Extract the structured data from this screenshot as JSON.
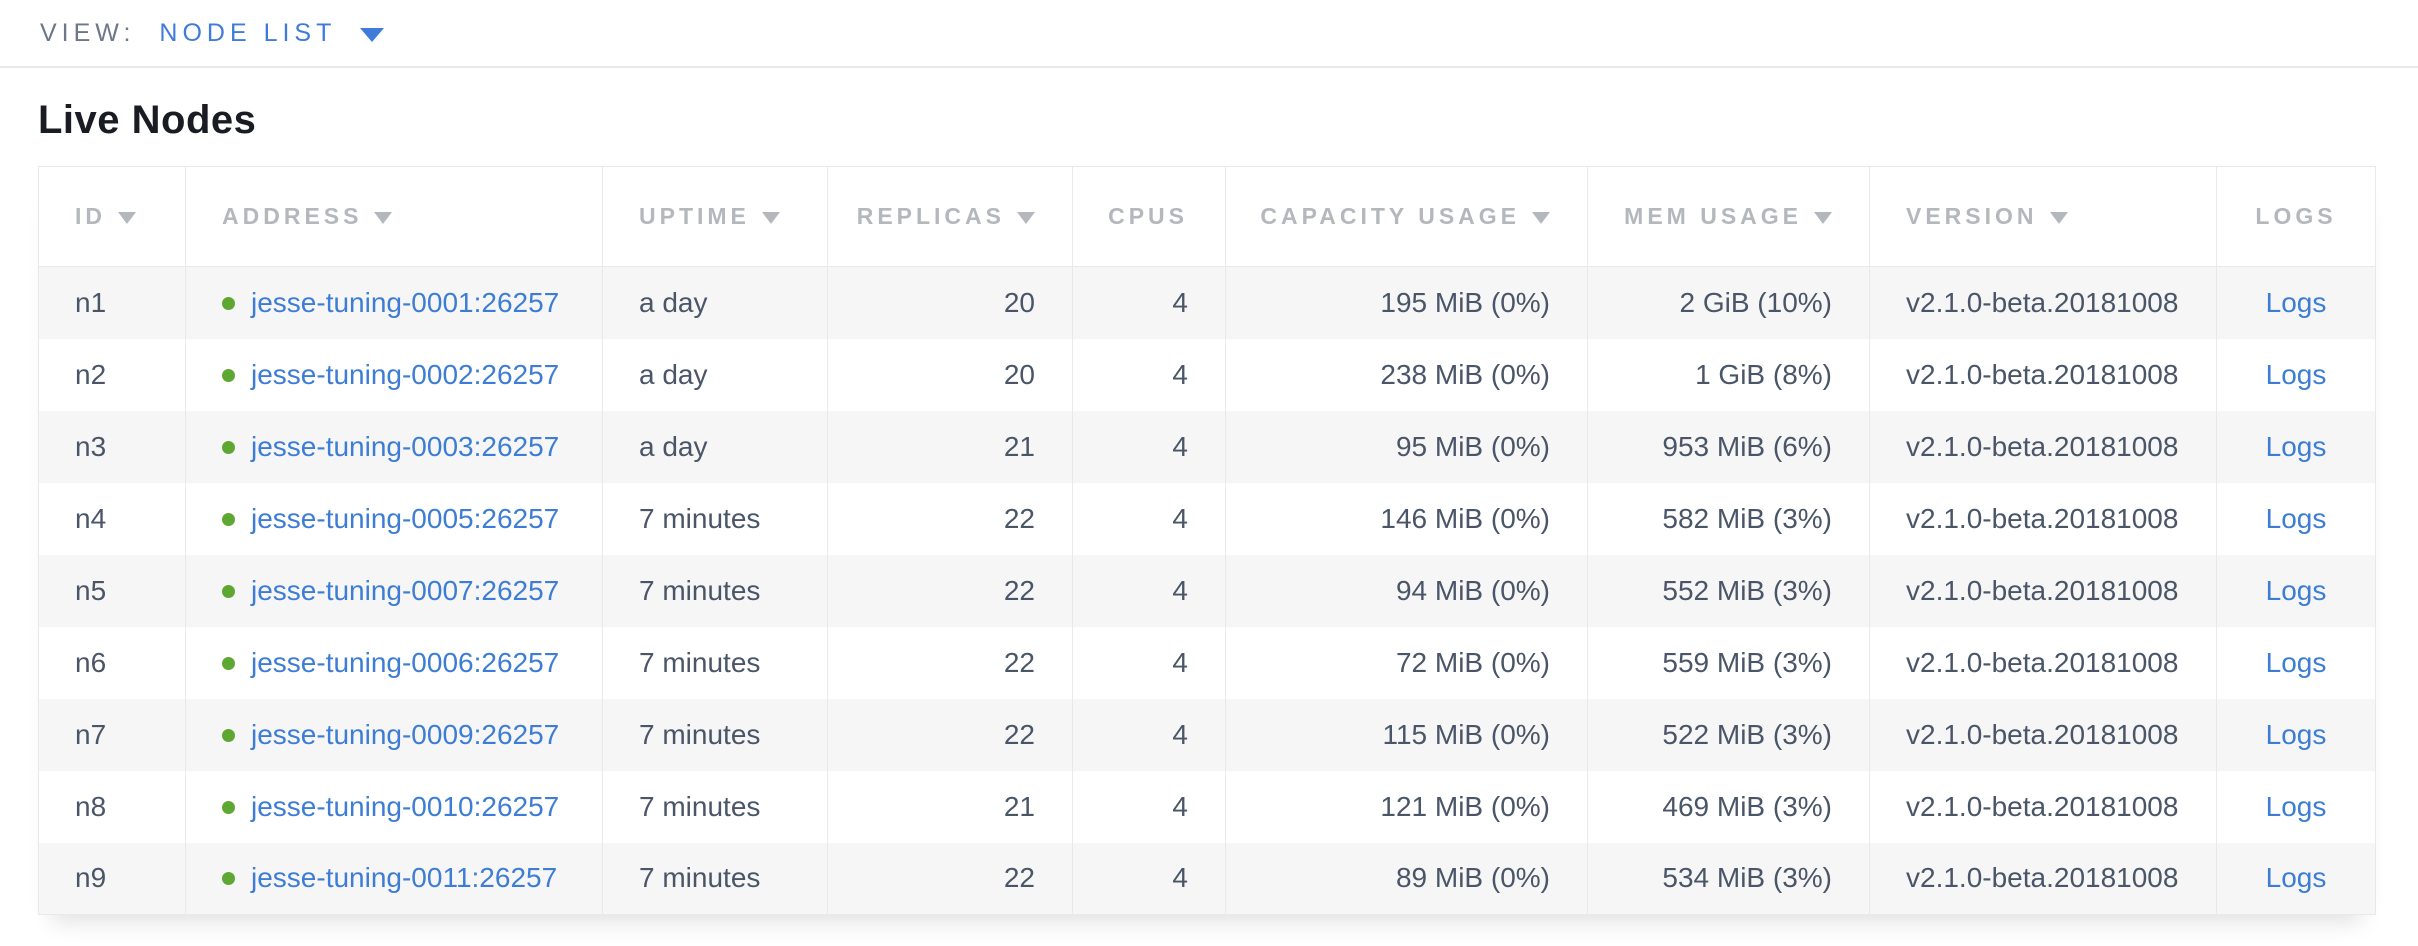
{
  "view_bar": {
    "label": "VIEW:",
    "selected_view": "NODE LIST"
  },
  "page_title": "Live Nodes",
  "icons": {
    "dropdown_caret": "triangle-down",
    "sort_desc": "triangle-down",
    "live_status": "green-circle"
  },
  "colors": {
    "link_blue": "#3d7dd5",
    "live_green": "#5fa733",
    "header_gray": "#b4b7bc",
    "body_text": "#4a5668",
    "row_stripe": "#f6f6f6"
  },
  "table": {
    "columns": [
      {
        "key": "id",
        "label": "ID",
        "sortable": true,
        "align": "left"
      },
      {
        "key": "address",
        "label": "ADDRESS",
        "sortable": true,
        "align": "left"
      },
      {
        "key": "uptime",
        "label": "UPTIME",
        "sortable": true,
        "align": "left"
      },
      {
        "key": "replicas",
        "label": "REPLICAS",
        "sortable": true,
        "align": "right"
      },
      {
        "key": "cpus",
        "label": "CPUS",
        "sortable": false,
        "align": "right"
      },
      {
        "key": "capacity",
        "label": "CAPACITY USAGE",
        "sortable": true,
        "align": "right"
      },
      {
        "key": "mem",
        "label": "MEM USAGE",
        "sortable": true,
        "align": "right"
      },
      {
        "key": "version",
        "label": "VERSION",
        "sortable": true,
        "align": "left"
      },
      {
        "key": "logs",
        "label": "LOGS",
        "sortable": false,
        "align": "center"
      }
    ],
    "rows": [
      {
        "id": "n1",
        "address": "jesse-tuning-0001:26257",
        "uptime": "a day",
        "replicas": "20",
        "cpus": "4",
        "capacity": "195 MiB (0%)",
        "mem": "2 GiB (10%)",
        "version": "v2.1.0-beta.20181008",
        "logs": "Logs"
      },
      {
        "id": "n2",
        "address": "jesse-tuning-0002:26257",
        "uptime": "a day",
        "replicas": "20",
        "cpus": "4",
        "capacity": "238 MiB (0%)",
        "mem": "1 GiB (8%)",
        "version": "v2.1.0-beta.20181008",
        "logs": "Logs"
      },
      {
        "id": "n3",
        "address": "jesse-tuning-0003:26257",
        "uptime": "a day",
        "replicas": "21",
        "cpus": "4",
        "capacity": "95 MiB (0%)",
        "mem": "953 MiB (6%)",
        "version": "v2.1.0-beta.20181008",
        "logs": "Logs"
      },
      {
        "id": "n4",
        "address": "jesse-tuning-0005:26257",
        "uptime": "7 minutes",
        "replicas": "22",
        "cpus": "4",
        "capacity": "146 MiB (0%)",
        "mem": "582 MiB (3%)",
        "version": "v2.1.0-beta.20181008",
        "logs": "Logs"
      },
      {
        "id": "n5",
        "address": "jesse-tuning-0007:26257",
        "uptime": "7 minutes",
        "replicas": "22",
        "cpus": "4",
        "capacity": "94 MiB (0%)",
        "mem": "552 MiB (3%)",
        "version": "v2.1.0-beta.20181008",
        "logs": "Logs"
      },
      {
        "id": "n6",
        "address": "jesse-tuning-0006:26257",
        "uptime": "7 minutes",
        "replicas": "22",
        "cpus": "4",
        "capacity": "72 MiB (0%)",
        "mem": "559 MiB (3%)",
        "version": "v2.1.0-beta.20181008",
        "logs": "Logs"
      },
      {
        "id": "n7",
        "address": "jesse-tuning-0009:26257",
        "uptime": "7 minutes",
        "replicas": "22",
        "cpus": "4",
        "capacity": "115 MiB (0%)",
        "mem": "522 MiB (3%)",
        "version": "v2.1.0-beta.20181008",
        "logs": "Logs"
      },
      {
        "id": "n8",
        "address": "jesse-tuning-0010:26257",
        "uptime": "7 minutes",
        "replicas": "21",
        "cpus": "4",
        "capacity": "121 MiB (0%)",
        "mem": "469 MiB (3%)",
        "version": "v2.1.0-beta.20181008",
        "logs": "Logs"
      },
      {
        "id": "n9",
        "address": "jesse-tuning-0011:26257",
        "uptime": "7 minutes",
        "replicas": "22",
        "cpus": "4",
        "capacity": "89 MiB (0%)",
        "mem": "534 MiB (3%)",
        "version": "v2.1.0-beta.20181008",
        "logs": "Logs"
      }
    ]
  }
}
